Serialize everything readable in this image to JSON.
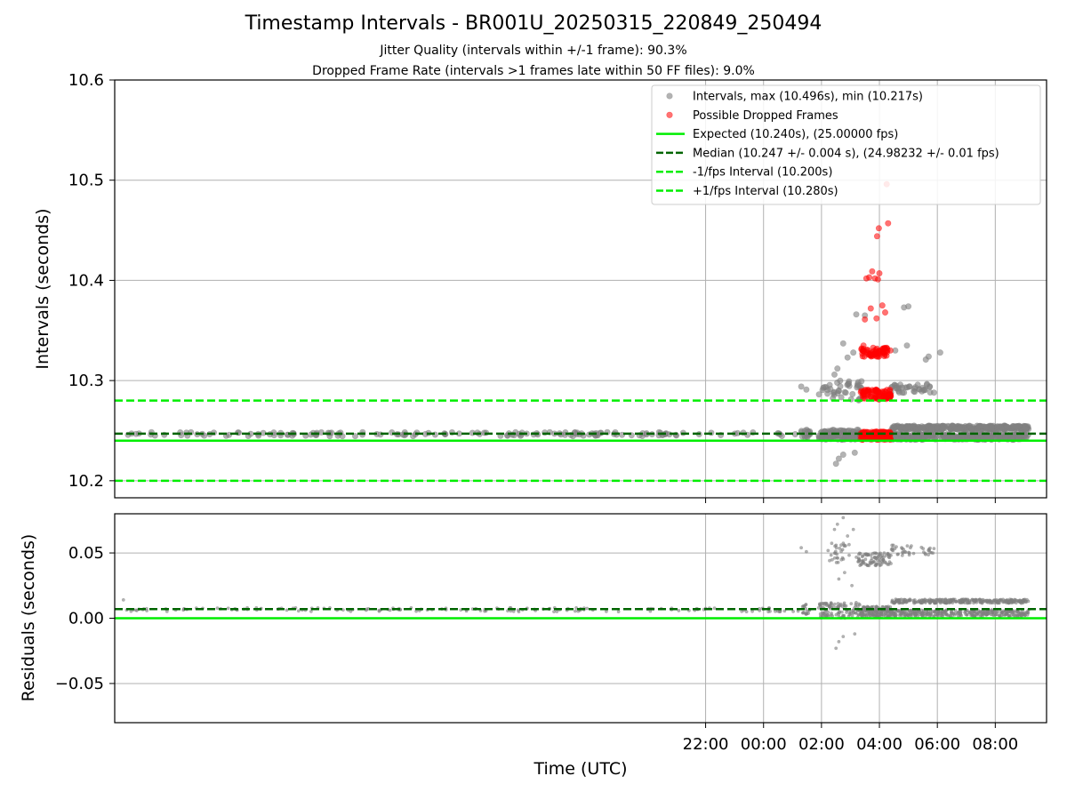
{
  "colors": {
    "intervals": "#808080",
    "dropped": "#ff0000",
    "expected": "#00ee00",
    "median": "#006400",
    "fps_bounds": "#00ee00",
    "grid": "#b0b0b0"
  },
  "chart_data": [
    {
      "type": "scatter",
      "title": "Timestamp Intervals - BR001U_20250315_220849_250494",
      "subtitle_1": "Jitter Quality (intervals within +/-1 frame): 90.3%",
      "subtitle_2": "Dropped Frame Rate (intervals >1 frames late within 50 FF files): 9.0%",
      "ylabel": "Intervals (seconds)",
      "xlabel": "",
      "x_axis_units": "hours from 00:00 UTC (2025-03-16)",
      "xlim": [
        -22.4,
        9.77
      ],
      "ylim": [
        10.183,
        10.6
      ],
      "yticks": [
        10.2,
        10.3,
        10.4,
        10.5,
        10.6
      ],
      "ytick_labels": [
        "10.2",
        "10.3",
        "10.4",
        "10.5",
        "10.6"
      ],
      "xticks": [
        -2,
        0,
        2,
        4,
        6,
        8
      ],
      "grid": true,
      "legend_placement": "upper-right",
      "series": [
        {
          "name": "Intervals, max (10.496s), min (10.217s)",
          "style": "scatter",
          "color": "#808080",
          "clusters": [
            {
              "x_from": -22.15,
              "x_to": 1.2,
              "y_center": 10.2465,
              "y_spread": 0.002,
              "count": 160
            },
            {
              "x_from": 1.3,
              "x_to": 1.6,
              "y_center": 10.247,
              "y_spread": 0.004,
              "count": 18
            },
            {
              "x_from": 1.9,
              "x_to": 3.4,
              "y_center": 10.246,
              "y_spread": 0.005,
              "count": 110
            },
            {
              "x_from": 1.9,
              "x_to": 3.4,
              "y_center": 10.29,
              "y_spread": 0.01,
              "count": 40
            },
            {
              "x_from": 4.4,
              "x_to": 9.15,
              "y_center": 10.244,
              "y_spread": 0.003,
              "count": 340
            },
            {
              "x_from": 4.4,
              "x_to": 9.15,
              "y_center": 10.253,
              "y_spread": 0.002,
              "count": 300
            },
            {
              "x_from": 4.4,
              "x_to": 5.9,
              "y_center": 10.292,
              "y_spread": 0.005,
              "count": 38
            }
          ],
          "points": [
            {
              "x": 1.3,
              "y": 10.294
            },
            {
              "x": 1.48,
              "y": 10.291
            },
            {
              "x": 2.5,
              "y": 10.217
            },
            {
              "x": 2.6,
              "y": 10.222
            },
            {
              "x": 2.75,
              "y": 10.226
            },
            {
              "x": 2.45,
              "y": 10.306
            },
            {
              "x": 2.55,
              "y": 10.312
            },
            {
              "x": 2.75,
              "y": 10.337
            },
            {
              "x": 2.9,
              "y": 10.323
            },
            {
              "x": 3.1,
              "y": 10.328
            },
            {
              "x": 3.2,
              "y": 10.366
            },
            {
              "x": 3.5,
              "y": 10.365
            },
            {
              "x": 4.55,
              "y": 10.33
            },
            {
              "x": 4.85,
              "y": 10.373
            },
            {
              "x": 5.0,
              "y": 10.374
            },
            {
              "x": 4.95,
              "y": 10.335
            },
            {
              "x": 5.6,
              "y": 10.321
            },
            {
              "x": 5.7,
              "y": 10.324
            },
            {
              "x": 6.1,
              "y": 10.328
            },
            {
              "x": 3.15,
              "y": 10.228
            }
          ]
        },
        {
          "name": "Possible Dropped Frames",
          "style": "scatter",
          "color": "#ff0000",
          "clusters": [
            {
              "x_from": 3.35,
              "x_to": 4.4,
              "y_center": 10.245,
              "y_spread": 0.004,
              "count": 160
            },
            {
              "x_from": 3.35,
              "x_to": 4.4,
              "y_center": 10.286,
              "y_spread": 0.005,
              "count": 80
            },
            {
              "x_from": 3.35,
              "x_to": 4.3,
              "y_center": 10.328,
              "y_spread": 0.005,
              "count": 60
            }
          ],
          "points": [
            {
              "x": 3.55,
              "y": 10.402
            },
            {
              "x": 3.65,
              "y": 10.403
            },
            {
              "x": 3.75,
              "y": 10.409
            },
            {
              "x": 3.85,
              "y": 10.402
            },
            {
              "x": 3.95,
              "y": 10.401
            },
            {
              "x": 4.0,
              "y": 10.407
            },
            {
              "x": 3.5,
              "y": 10.361
            },
            {
              "x": 3.7,
              "y": 10.372
            },
            {
              "x": 3.9,
              "y": 10.362
            },
            {
              "x": 4.1,
              "y": 10.375
            },
            {
              "x": 4.2,
              "y": 10.368
            },
            {
              "x": 3.98,
              "y": 10.452
            },
            {
              "x": 3.92,
              "y": 10.444
            },
            {
              "x": 4.25,
              "y": 10.496
            },
            {
              "x": 4.3,
              "y": 10.457
            },
            {
              "x": 3.45,
              "y": 10.335
            },
            {
              "x": 4.38,
              "y": 10.33
            }
          ]
        },
        {
          "name": "Expected (10.240s), (25.00000 fps)",
          "style": "line",
          "color": "#00ee00",
          "y": 10.24
        },
        {
          "name": "Median (10.247 +/- 0.004 s), (24.98232 +/- 0.01 fps)",
          "style": "dashed",
          "color": "#006400",
          "y": 10.247
        },
        {
          "name": "-1/fps Interval (10.200s)",
          "style": "dashed",
          "color": "#00ee00",
          "y": 10.2
        },
        {
          "name": "+1/fps Interval (10.280s)",
          "style": "dashed",
          "color": "#00ee00",
          "y": 10.28
        }
      ]
    },
    {
      "type": "scatter",
      "title": "",
      "ylabel": "Residuals (seconds)",
      "xlabel": "Time (UTC)",
      "x_axis_units": "hours from 00:00 UTC (2025-03-16)",
      "xlim": [
        -22.4,
        9.77
      ],
      "ylim": [
        -0.08,
        0.08
      ],
      "yticks": [
        -0.05,
        0.0,
        0.05
      ],
      "ytick_labels": [
        "−0.05",
        "0.00",
        "0.05"
      ],
      "xticks": [
        -2,
        0,
        2,
        4,
        6,
        8
      ],
      "xtick_labels": [
        "22:00",
        "00:00",
        "02:00",
        "04:00",
        "06:00",
        "08:00"
      ],
      "grid": true,
      "series": [
        {
          "style": "scatter",
          "color": "#808080",
          "clusters": [
            {
              "x_from": -22.15,
              "x_to": 1.2,
              "y_center": 0.0065,
              "y_spread": 0.0015,
              "count": 160
            },
            {
              "x_from": 1.3,
              "x_to": 1.6,
              "y_center": 0.007,
              "y_spread": 0.004,
              "count": 18
            },
            {
              "x_from": 1.9,
              "x_to": 3.4,
              "y_center": 0.006,
              "y_spread": 0.006,
              "count": 110
            },
            {
              "x_from": 2.2,
              "x_to": 3.0,
              "y_center": 0.05,
              "y_spread": 0.008,
              "count": 30
            },
            {
              "x_from": 3.2,
              "x_to": 4.4,
              "y_center": 0.045,
              "y_spread": 0.005,
              "count": 90
            },
            {
              "x_from": 3.35,
              "x_to": 4.4,
              "y_center": 0.005,
              "y_spread": 0.004,
              "count": 160
            },
            {
              "x_from": 4.4,
              "x_to": 9.15,
              "y_center": 0.004,
              "y_spread": 0.0025,
              "count": 340
            },
            {
              "x_from": 4.4,
              "x_to": 9.15,
              "y_center": 0.013,
              "y_spread": 0.0015,
              "count": 300
            },
            {
              "x_from": 4.4,
              "x_to": 5.9,
              "y_center": 0.052,
              "y_spread": 0.004,
              "count": 38
            }
          ],
          "points": [
            {
              "x": -22.1,
              "y": 0.014
            },
            {
              "x": 1.3,
              "y": 0.054
            },
            {
              "x": 1.48,
              "y": 0.051
            },
            {
              "x": 2.5,
              "y": -0.023
            },
            {
              "x": 2.6,
              "y": -0.018
            },
            {
              "x": 2.75,
              "y": -0.014
            },
            {
              "x": 2.45,
              "y": 0.068
            },
            {
              "x": 2.55,
              "y": 0.072
            },
            {
              "x": 2.75,
              "y": 0.077
            },
            {
              "x": 2.9,
              "y": 0.063
            },
            {
              "x": 3.1,
              "y": 0.068
            },
            {
              "x": 2.6,
              "y": 0.03
            },
            {
              "x": 2.8,
              "y": 0.035
            },
            {
              "x": 3.05,
              "y": 0.025
            },
            {
              "x": 3.15,
              "y": -0.012
            },
            {
              "x": 5.85,
              "y": 0.05
            }
          ]
        },
        {
          "style": "dashed",
          "color": "#006400",
          "y": 0.007
        },
        {
          "style": "line",
          "color": "#00ee00",
          "y": 0.0
        }
      ]
    }
  ]
}
